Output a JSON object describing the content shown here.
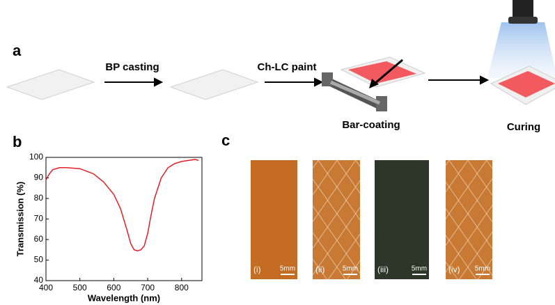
{
  "panel_a": {
    "label": "a",
    "steps": [
      "BP casting",
      "Ch-LC paint",
      "Bar-coating",
      "Curing"
    ]
  },
  "panel_b": {
    "label": "b"
  },
  "chart_data": {
    "type": "line",
    "x_label": "Wavelength (nm)",
    "y_label": "Transmission (%)",
    "x": [
      400,
      410,
      420,
      440,
      460,
      500,
      540,
      570,
      600,
      620,
      640,
      650,
      660,
      670,
      680,
      690,
      700,
      710,
      720,
      740,
      760,
      780,
      800,
      820,
      840,
      850
    ],
    "values": [
      89,
      92,
      94,
      95,
      95,
      94.5,
      92,
      88,
      82,
      75,
      64,
      58,
      55,
      54.5,
      55,
      57,
      63,
      72,
      80,
      90,
      95,
      97,
      98,
      98.5,
      99,
      98.5
    ],
    "color": "#e41e26",
    "xlim": [
      400,
      860
    ],
    "ylim": [
      40,
      100
    ],
    "xticks": [
      400,
      500,
      600,
      700,
      800
    ],
    "yticks": [
      40,
      50,
      60,
      70,
      80,
      90,
      100
    ]
  },
  "panel_c": {
    "label": "c",
    "samples": [
      {
        "label": "(i)",
        "scale": "5mm"
      },
      {
        "label": "(ii)",
        "scale": "5mm"
      },
      {
        "label": "(iii)",
        "scale": "5mm"
      },
      {
        "label": "(iv)",
        "scale": "5mm"
      }
    ]
  }
}
